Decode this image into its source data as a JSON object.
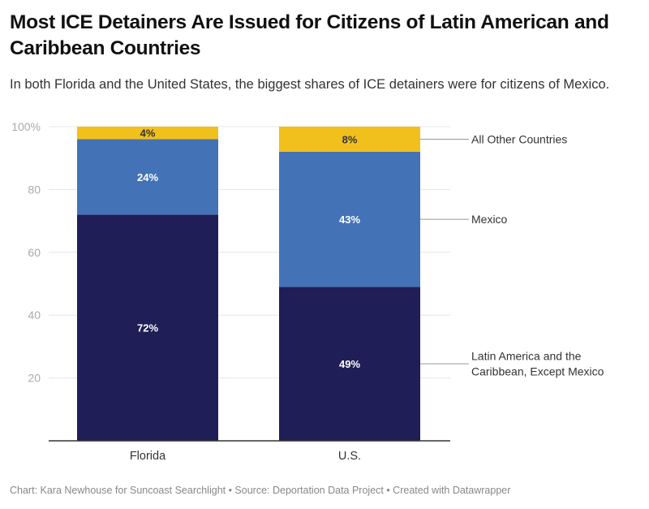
{
  "title": "Most ICE Detainers Are Issued for Citizens of Latin American and Caribbean Countries",
  "subtitle": "In both Florida and the United States, the biggest shares of ICE detainers were for citizens of Mexico.",
  "footer": "Chart: Kara Newhouse for Suncoast Searchlight • Source: Deportation Data Project • Created with Datawrapper",
  "chart_data": {
    "type": "bar",
    "stacked": true,
    "orientation": "vertical",
    "title": "Most ICE Detainers Are Issued for Citizens of Latin American and Caribbean Countries",
    "subtitle": "In both Florida and the United States, the biggest shares of ICE detainers were for citizens of Mexico.",
    "xlabel": "",
    "ylabel": "",
    "ylim": [
      0,
      100
    ],
    "yticks": [
      20,
      40,
      60,
      80,
      100
    ],
    "ytick_labels": [
      "20",
      "40",
      "60",
      "80",
      "100%"
    ],
    "grid": true,
    "legend": "right (direct labels)",
    "categories": [
      "Florida",
      "U.S."
    ],
    "series": [
      {
        "name": "Latin America and the Caribbean, Except Mexico",
        "color": "#201e57",
        "label_color": "#ffffff",
        "values": [
          72,
          49
        ],
        "labels": [
          "72%",
          "49%"
        ]
      },
      {
        "name": "Mexico",
        "color": "#4373b6",
        "label_color": "#ffffff",
        "values": [
          24,
          43
        ],
        "labels": [
          "24%",
          "43%"
        ]
      },
      {
        "name": "All Other Countries",
        "color": "#f2c01d",
        "label_color": "#333333",
        "values": [
          4,
          8
        ],
        "labels": [
          "4%",
          "8%"
        ]
      }
    ]
  }
}
